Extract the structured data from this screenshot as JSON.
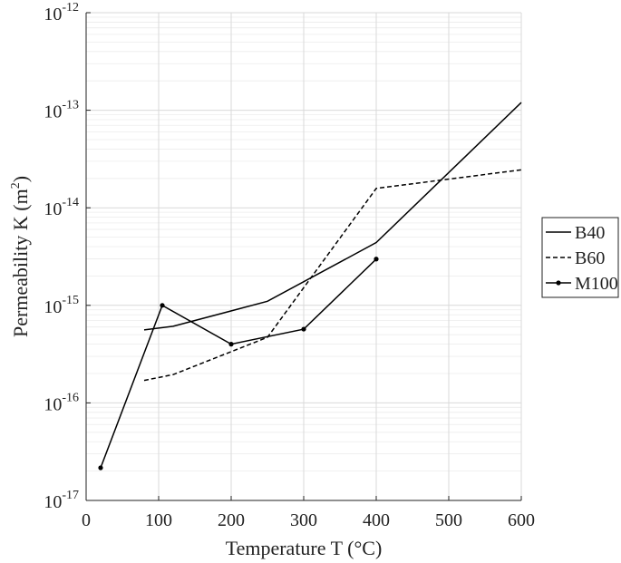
{
  "chart_data": {
    "type": "line",
    "x_label": "Temperature T (°C)",
    "y_label": {
      "text": "Permeability K (m",
      "superscript": "2",
      "close": ")"
    },
    "xlim": [
      0,
      600
    ],
    "xticks": [
      0,
      100,
      200,
      300,
      400,
      500,
      600
    ],
    "ylim": [
      1e-17,
      1e-12
    ],
    "log_y": true,
    "grid": true,
    "minor_grid": true,
    "yticks": [
      {
        "value": 1e-17,
        "label": "10",
        "exponent": "-17"
      },
      {
        "value": 1e-16,
        "label": "10",
        "exponent": "-16"
      },
      {
        "value": 1e-15,
        "label": "10",
        "exponent": "-15"
      },
      {
        "value": 1e-14,
        "label": "10",
        "exponent": "-14"
      },
      {
        "value": 1e-13,
        "label": "10",
        "exponent": "-13"
      },
      {
        "value": 1e-12,
        "label": "10",
        "exponent": "-12"
      }
    ],
    "legend": "outside-right",
    "series": [
      {
        "name": "B40",
        "color": "#000000",
        "style": "solid",
        "marker": false,
        "x": [
          80,
          120,
          250,
          400,
          600
        ],
        "values": [
          5.6e-16,
          6.1e-16,
          1.1e-15,
          4.4e-15,
          1.2e-13
        ]
      },
      {
        "name": "B60",
        "color": "#000000",
        "style": "dashed",
        "marker": false,
        "x": [
          80,
          120,
          250,
          400,
          600
        ],
        "values": [
          1.7e-16,
          1.95e-16,
          4.7e-16,
          1.58e-14,
          2.45e-14
        ]
      },
      {
        "name": "M100",
        "color": "#000000",
        "style": "solid",
        "marker": true,
        "x": [
          20,
          105,
          200,
          300,
          400
        ],
        "values": [
          2.16e-17,
          1e-15,
          4e-16,
          5.7e-16,
          2.98e-15
        ]
      }
    ]
  }
}
